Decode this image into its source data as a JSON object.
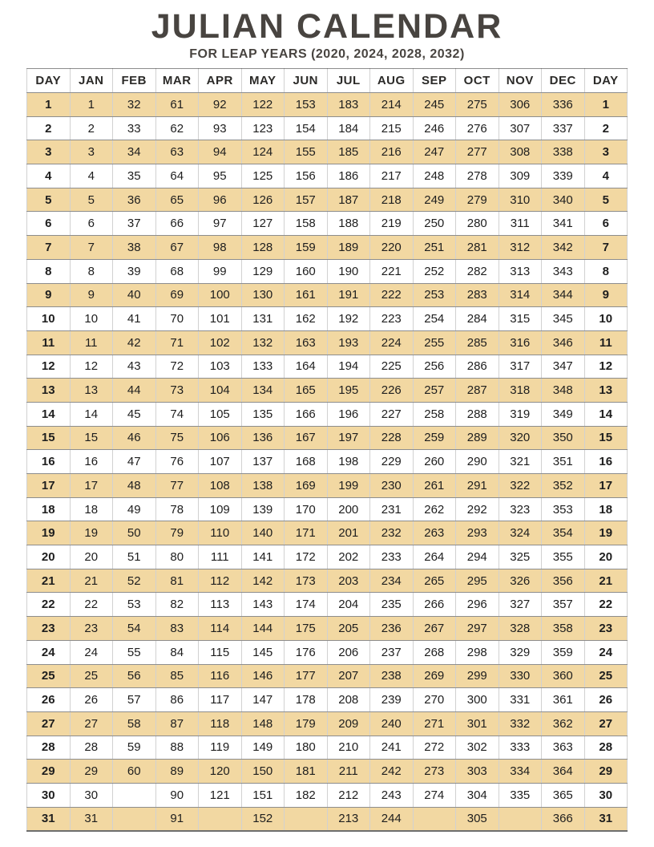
{
  "title": "JULIAN CALENDAR",
  "subtitle": "FOR LEAP YEARS (2020, 2024, 2028, 2032)",
  "colors": {
    "stripe": "#f2d8a2",
    "heading_text": "#484440",
    "cell_text": "#1e1e1e"
  },
  "table": {
    "headers": [
      "DAY",
      "JAN",
      "FEB",
      "MAR",
      "APR",
      "MAY",
      "JUN",
      "JUL",
      "AUG",
      "SEP",
      "OCT",
      "NOV",
      "DEC",
      "DAY"
    ],
    "rows": [
      [
        "1",
        "1",
        "32",
        "61",
        "92",
        "122",
        "153",
        "183",
        "214",
        "245",
        "275",
        "306",
        "336",
        "1"
      ],
      [
        "2",
        "2",
        "33",
        "62",
        "93",
        "123",
        "154",
        "184",
        "215",
        "246",
        "276",
        "307",
        "337",
        "2"
      ],
      [
        "3",
        "3",
        "34",
        "63",
        "94",
        "124",
        "155",
        "185",
        "216",
        "247",
        "277",
        "308",
        "338",
        "3"
      ],
      [
        "4",
        "4",
        "35",
        "64",
        "95",
        "125",
        "156",
        "186",
        "217",
        "248",
        "278",
        "309",
        "339",
        "4"
      ],
      [
        "5",
        "5",
        "36",
        "65",
        "96",
        "126",
        "157",
        "187",
        "218",
        "249",
        "279",
        "310",
        "340",
        "5"
      ],
      [
        "6",
        "6",
        "37",
        "66",
        "97",
        "127",
        "158",
        "188",
        "219",
        "250",
        "280",
        "311",
        "341",
        "6"
      ],
      [
        "7",
        "7",
        "38",
        "67",
        "98",
        "128",
        "159",
        "189",
        "220",
        "251",
        "281",
        "312",
        "342",
        "7"
      ],
      [
        "8",
        "8",
        "39",
        "68",
        "99",
        "129",
        "160",
        "190",
        "221",
        "252",
        "282",
        "313",
        "343",
        "8"
      ],
      [
        "9",
        "9",
        "40",
        "69",
        "100",
        "130",
        "161",
        "191",
        "222",
        "253",
        "283",
        "314",
        "344",
        "9"
      ],
      [
        "10",
        "10",
        "41",
        "70",
        "101",
        "131",
        "162",
        "192",
        "223",
        "254",
        "284",
        "315",
        "345",
        "10"
      ],
      [
        "11",
        "11",
        "42",
        "71",
        "102",
        "132",
        "163",
        "193",
        "224",
        "255",
        "285",
        "316",
        "346",
        "11"
      ],
      [
        "12",
        "12",
        "43",
        "72",
        "103",
        "133",
        "164",
        "194",
        "225",
        "256",
        "286",
        "317",
        "347",
        "12"
      ],
      [
        "13",
        "13",
        "44",
        "73",
        "104",
        "134",
        "165",
        "195",
        "226",
        "257",
        "287",
        "318",
        "348",
        "13"
      ],
      [
        "14",
        "14",
        "45",
        "74",
        "105",
        "135",
        "166",
        "196",
        "227",
        "258",
        "288",
        "319",
        "349",
        "14"
      ],
      [
        "15",
        "15",
        "46",
        "75",
        "106",
        "136",
        "167",
        "197",
        "228",
        "259",
        "289",
        "320",
        "350",
        "15"
      ],
      [
        "16",
        "16",
        "47",
        "76",
        "107",
        "137",
        "168",
        "198",
        "229",
        "260",
        "290",
        "321",
        "351",
        "16"
      ],
      [
        "17",
        "17",
        "48",
        "77",
        "108",
        "138",
        "169",
        "199",
        "230",
        "261",
        "291",
        "322",
        "352",
        "17"
      ],
      [
        "18",
        "18",
        "49",
        "78",
        "109",
        "139",
        "170",
        "200",
        "231",
        "262",
        "292",
        "323",
        "353",
        "18"
      ],
      [
        "19",
        "19",
        "50",
        "79",
        "110",
        "140",
        "171",
        "201",
        "232",
        "263",
        "293",
        "324",
        "354",
        "19"
      ],
      [
        "20",
        "20",
        "51",
        "80",
        "111",
        "141",
        "172",
        "202",
        "233",
        "264",
        "294",
        "325",
        "355",
        "20"
      ],
      [
        "21",
        "21",
        "52",
        "81",
        "112",
        "142",
        "173",
        "203",
        "234",
        "265",
        "295",
        "326",
        "356",
        "21"
      ],
      [
        "22",
        "22",
        "53",
        "82",
        "113",
        "143",
        "174",
        "204",
        "235",
        "266",
        "296",
        "327",
        "357",
        "22"
      ],
      [
        "23",
        "23",
        "54",
        "83",
        "114",
        "144",
        "175",
        "205",
        "236",
        "267",
        "297",
        "328",
        "358",
        "23"
      ],
      [
        "24",
        "24",
        "55",
        "84",
        "115",
        "145",
        "176",
        "206",
        "237",
        "268",
        "298",
        "329",
        "359",
        "24"
      ],
      [
        "25",
        "25",
        "56",
        "85",
        "116",
        "146",
        "177",
        "207",
        "238",
        "269",
        "299",
        "330",
        "360",
        "25"
      ],
      [
        "26",
        "26",
        "57",
        "86",
        "117",
        "147",
        "178",
        "208",
        "239",
        "270",
        "300",
        "331",
        "361",
        "26"
      ],
      [
        "27",
        "27",
        "58",
        "87",
        "118",
        "148",
        "179",
        "209",
        "240",
        "271",
        "301",
        "332",
        "362",
        "27"
      ],
      [
        "28",
        "28",
        "59",
        "88",
        "119",
        "149",
        "180",
        "210",
        "241",
        "272",
        "302",
        "333",
        "363",
        "28"
      ],
      [
        "29",
        "29",
        "60",
        "89",
        "120",
        "150",
        "181",
        "211",
        "242",
        "273",
        "303",
        "334",
        "364",
        "29"
      ],
      [
        "30",
        "30",
        "",
        "90",
        "121",
        "151",
        "182",
        "212",
        "243",
        "274",
        "304",
        "335",
        "365",
        "30"
      ],
      [
        "31",
        "31",
        "",
        "91",
        "",
        "152",
        "",
        "213",
        "244",
        "",
        "305",
        "",
        "366",
        "31"
      ]
    ]
  }
}
